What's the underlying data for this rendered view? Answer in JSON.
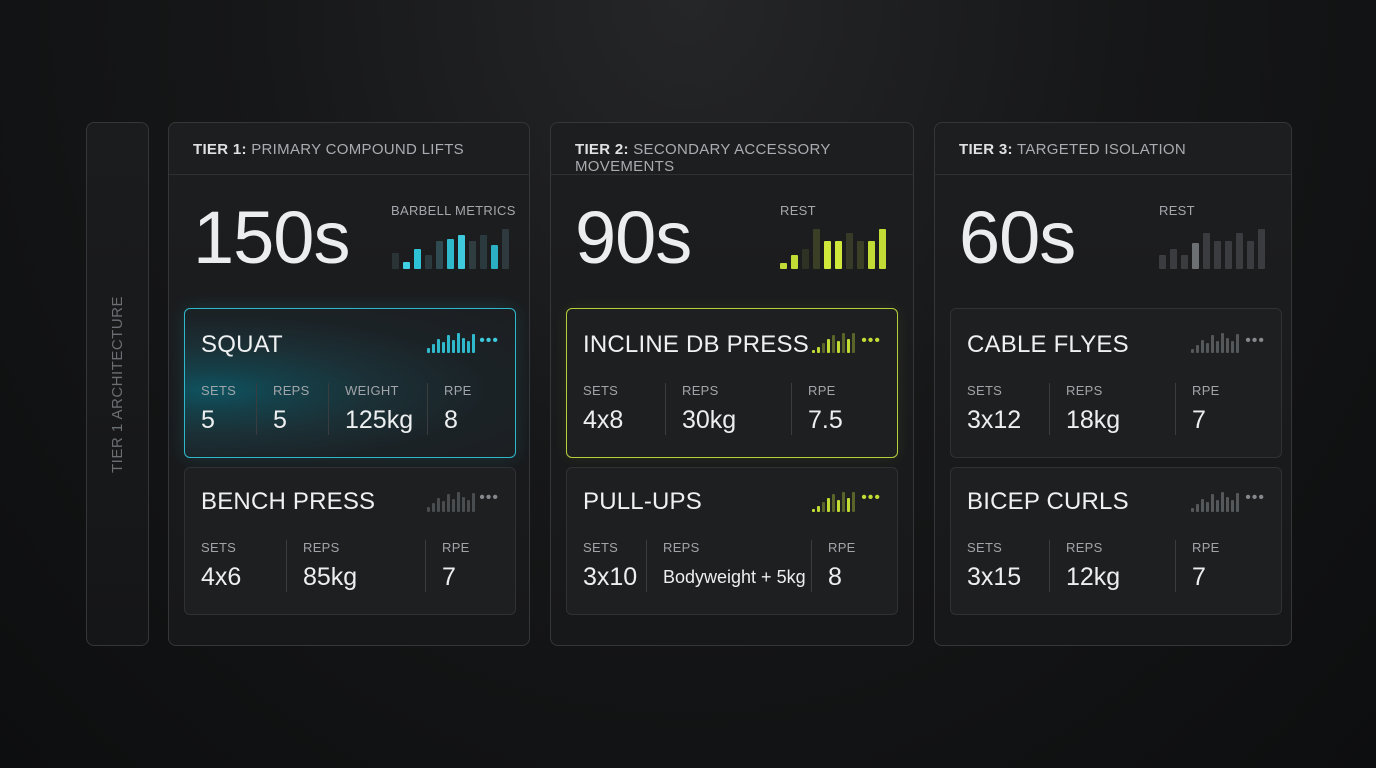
{
  "side_rail": {
    "label": "TIER 1 ARCHITECTURE"
  },
  "tiers": [
    {
      "tier_label": "TIER 1:",
      "tier_name": "PRIMARY COMPOUND LIFTS",
      "rest_value": "150s",
      "metric_label": "BARBELL METRICS",
      "accent": "#36c3d6",
      "cards": [
        {
          "title": "SQUAT",
          "stats": [
            {
              "label": "SETS",
              "value": "5"
            },
            {
              "label": "REPS",
              "value": "5"
            },
            {
              "label": "WEIGHT",
              "value": "125kg"
            },
            {
              "label": "RPE",
              "value": "8"
            }
          ]
        },
        {
          "title": "BENCH PRESS",
          "stats": [
            {
              "label": "SETS",
              "value": "4x6"
            },
            {
              "label": "REPS",
              "value": "85kg"
            },
            {
              "label": "RPE",
              "value": "7"
            }
          ]
        }
      ]
    },
    {
      "tier_label": "TIER 2:",
      "tier_name": "SECONDARY ACCESSORY MOVEMENTS",
      "rest_value": "90s",
      "metric_label": "REST",
      "accent": "#c3dc35",
      "cards": [
        {
          "title": "INCLINE DB PRESS",
          "stats": [
            {
              "label": "SETS",
              "value": "4x8"
            },
            {
              "label": "REPS",
              "value": "30kg"
            },
            {
              "label": "RPE",
              "value": "7.5"
            }
          ]
        },
        {
          "title": "PULL-UPS",
          "stats": [
            {
              "label": "SETS",
              "value": "3x10"
            },
            {
              "label": "REPS",
              "value": "Bodyweight + 5kg"
            },
            {
              "label": "RPE",
              "value": "8"
            }
          ]
        }
      ]
    },
    {
      "tier_label": "TIER 3:",
      "tier_name": "TARGETED ISOLATION",
      "rest_value": "60s",
      "metric_label": "REST",
      "accent": "#8a8c8f",
      "cards": [
        {
          "title": "CABLE FLYES",
          "stats": [
            {
              "label": "SETS",
              "value": "3x12"
            },
            {
              "label": "REPS",
              "value": "18kg"
            },
            {
              "label": "RPE",
              "value": "7"
            }
          ]
        },
        {
          "title": "BICEP CURLS",
          "stats": [
            {
              "label": "SETS",
              "value": "3x15"
            },
            {
              "label": "REPS",
              "value": "12kg"
            },
            {
              "label": "RPE",
              "value": "7"
            }
          ]
        }
      ]
    }
  ],
  "icons": {
    "more": "more-dots-icon",
    "bars": "bar-chart-icon"
  }
}
